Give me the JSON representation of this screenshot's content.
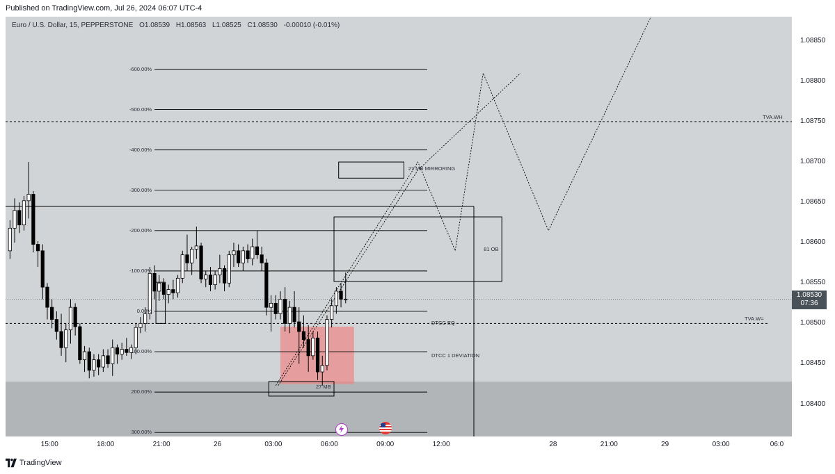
{
  "header": {
    "published": "Published on TradingView.com, Jul 26, 2024 06:07 UTC-4"
  },
  "legend": {
    "symbol": "Euro / U.S. Dollar, 15, PEPPERSTONE",
    "open": "O1.08539",
    "high": "H1.08563",
    "low": "L1.08525",
    "close": "C1.08530",
    "change": "-0.00010 (-0.01%)"
  },
  "current_price": {
    "value": "1.08530",
    "countdown": "07:36"
  },
  "annotations": {
    "mb27_mirroring": "27 MB MIRRORING",
    "ob81": "81 OB",
    "mb27": "27 MB",
    "dtcc_eq": "DTCC EQ",
    "dtcc_dev": "DTCC 1 DEVIATION",
    "tva_wh": "TVA.WH",
    "tva_wl": "TVA.W="
  },
  "footer": {
    "brand": "TradingView"
  },
  "colors": {
    "plot_bg": "#d1d4d6",
    "lower_zone": "#b2b5b8",
    "red_zone": "#f08080",
    "badge": "#4a5259"
  },
  "chart_data": {
    "type": "candlestick",
    "symbol": "EURUSD",
    "timeframe": "15",
    "ylim": [
      1.0836,
      1.0888
    ],
    "y_ticks": [
      "1.08400",
      "1.08450",
      "1.08500",
      "1.08550",
      "1.08600",
      "1.08650",
      "1.08700",
      "1.08750",
      "1.08800",
      "1.08850"
    ],
    "x_ticks": [
      {
        "label": "15:00",
        "bar": 9
      },
      {
        "label": "18:00",
        "bar": 21
      },
      {
        "label": "21:00",
        "bar": 33
      },
      {
        "label": "26",
        "bar": 45
      },
      {
        "label": "03:00",
        "bar": 57
      },
      {
        "label": "06:00",
        "bar": 69
      },
      {
        "label": "09:00",
        "bar": 81
      },
      {
        "label": "12:00",
        "bar": 93
      },
      {
        "label": "28",
        "bar": 117
      },
      {
        "label": "21:00",
        "bar": 129
      },
      {
        "label": "29",
        "bar": 141
      },
      {
        "label": "03:00",
        "bar": 153
      },
      {
        "label": "06:0",
        "bar": 165
      }
    ],
    "candles": [
      [
        1.0859,
        1.08628,
        1.0858,
        1.08618
      ],
      [
        1.08618,
        1.08655,
        1.086,
        1.0864
      ],
      [
        1.0864,
        1.0865,
        1.08612,
        1.08622
      ],
      [
        1.08622,
        1.08658,
        1.08615,
        1.08652
      ],
      [
        1.08652,
        1.087,
        1.0863,
        1.0866
      ],
      [
        1.0866,
        1.08664,
        1.08588,
        1.08598
      ],
      [
        1.08598,
        1.08602,
        1.0857,
        1.0859
      ],
      [
        1.0859,
        1.08598,
        1.0853,
        1.08545
      ],
      [
        1.08545,
        1.0855,
        1.08505,
        1.0852
      ],
      [
        1.0852,
        1.0853,
        1.08494,
        1.08505
      ],
      [
        1.08505,
        1.08515,
        1.0848,
        1.0849
      ],
      [
        1.0849,
        1.08512,
        1.0846,
        1.0847
      ],
      [
        1.0847,
        1.085,
        1.08452,
        1.08492
      ],
      [
        1.08492,
        1.0853,
        1.08475,
        1.0852
      ],
      [
        1.0852,
        1.08525,
        1.08485,
        1.08496
      ],
      [
        1.08496,
        1.085,
        1.0845,
        1.08455
      ],
      [
        1.08455,
        1.08472,
        1.0844,
        1.08465
      ],
      [
        1.08465,
        1.0847,
        1.08432,
        1.08442
      ],
      [
        1.08442,
        1.08462,
        1.08434,
        1.08455
      ],
      [
        1.08455,
        1.08462,
        1.08436,
        1.08446
      ],
      [
        1.08446,
        1.08468,
        1.0844,
        1.0846
      ],
      [
        1.0846,
        1.08468,
        1.08445,
        1.0845
      ],
      [
        1.0845,
        1.0848,
        1.08435,
        1.0847
      ],
      [
        1.0847,
        1.08474,
        1.0845,
        1.08462
      ],
      [
        1.08462,
        1.08476,
        1.08455,
        1.08468
      ],
      [
        1.08468,
        1.08482,
        1.0846,
        1.08464
      ],
      [
        1.08464,
        1.08474,
        1.08456,
        1.0847
      ],
      [
        1.0847,
        1.085,
        1.08462,
        1.08495
      ],
      [
        1.08495,
        1.08508,
        1.08488,
        1.085
      ],
      [
        1.085,
        1.0852,
        1.0849,
        1.08512
      ],
      [
        1.08512,
        1.0857,
        1.08505,
        1.08562
      ],
      [
        1.08562,
        1.08572,
        1.0853,
        1.0854
      ],
      [
        1.0854,
        1.0856,
        1.08528,
        1.0855
      ],
      [
        1.0855,
        1.08556,
        1.0853,
        1.08536
      ],
      [
        1.08536,
        1.08548,
        1.08525,
        1.08542
      ],
      [
        1.08542,
        1.08554,
        1.0853,
        1.08538
      ],
      [
        1.08538,
        1.0856,
        1.08532,
        1.08556
      ],
      [
        1.08556,
        1.0859,
        1.0855,
        1.08585
      ],
      [
        1.08585,
        1.0861,
        1.08565,
        1.08575
      ],
      [
        1.08575,
        1.08595,
        1.0856,
        1.08592
      ],
      [
        1.08592,
        1.0862,
        1.0858,
        1.08596
      ],
      [
        1.08596,
        1.086,
        1.0855,
        1.08555
      ],
      [
        1.08555,
        1.08565,
        1.08545,
        1.0856
      ],
      [
        1.0856,
        1.0857,
        1.0854,
        1.08548
      ],
      [
        1.08548,
        1.08565,
        1.08542,
        1.0856
      ],
      [
        1.0856,
        1.08585,
        1.0855,
        1.08568
      ],
      [
        1.08568,
        1.08572,
        1.0854,
        1.0855
      ],
      [
        1.0855,
        1.0859,
        1.08545,
        1.08585
      ],
      [
        1.08585,
        1.086,
        1.0857,
        1.0859
      ],
      [
        1.0859,
        1.08598,
        1.0857,
        1.08575
      ],
      [
        1.08575,
        1.08595,
        1.08565,
        1.0859
      ],
      [
        1.0859,
        1.08598,
        1.08575,
        1.0858
      ],
      [
        1.0858,
        1.08605,
        1.08572,
        1.08595
      ],
      [
        1.08595,
        1.08615,
        1.0858,
        1.08585
      ],
      [
        1.08585,
        1.08595,
        1.08565,
        1.08575
      ],
      [
        1.08575,
        1.0858,
        1.0851,
        1.0852
      ],
      [
        1.0852,
        1.08535,
        1.0849,
        1.08525
      ],
      [
        1.08525,
        1.08535,
        1.08505,
        1.08512
      ],
      [
        1.08512,
        1.0854,
        1.08505,
        1.0853
      ],
      [
        1.0853,
        1.08545,
        1.0849,
        1.085
      ],
      [
        1.085,
        1.08528,
        1.08488,
        1.0852
      ],
      [
        1.0852,
        1.0854,
        1.08495,
        1.08502
      ],
      [
        1.08502,
        1.0852,
        1.0845,
        1.0849
      ],
      [
        1.0849,
        1.0851,
        1.0847,
        1.0848
      ],
      [
        1.0848,
        1.08498,
        1.0844,
        1.0846
      ],
      [
        1.0846,
        1.0849,
        1.08455,
        1.08482
      ],
      [
        1.08482,
        1.0849,
        1.0843,
        1.0844
      ],
      [
        1.0844,
        1.0846,
        1.08423,
        1.08448
      ],
      [
        1.08448,
        1.0851,
        1.08442,
        1.08505
      ],
      [
        1.08505,
        1.0853,
        1.08495,
        1.08522
      ],
      [
        1.08522,
        1.08545,
        1.08512,
        1.0854
      ],
      [
        1.0854,
        1.0855,
        1.0852,
        1.0853
      ],
      [
        1.0853,
        1.08563,
        1.08525,
        1.0853
      ]
    ],
    "zones": [
      {
        "label": "27 MB MIRRORING",
        "from_bar": 71,
        "to_bar": 85,
        "top": 1.087,
        "bottom": 1.0868
      },
      {
        "label": "81 OB",
        "from_bar": 70,
        "to_bar": 106,
        "top": 1.08632,
        "bottom": 1.08552
      },
      {
        "label": "27 MB",
        "from_bar": 56,
        "to_bar": 70,
        "top": 1.08428,
        "bottom": 1.0841
      }
    ],
    "levels": [
      {
        "label": "TVA.WH",
        "price": 1.0875
      },
      {
        "label": "TVA.W=",
        "price": 1.085
      },
      {
        "label": "DTCC EQ",
        "price": 1.085
      },
      {
        "label": "DTCC 1 DEVIATION",
        "price": 1.0845
      }
    ],
    "fib_levels": [
      {
        "label": "600.00%",
        "price": 1.08815
      },
      {
        "label": "500.00%",
        "price": 1.08765
      },
      {
        "label": "400.00%",
        "price": 1.08715
      },
      {
        "label": "300.00%",
        "price": 1.08665
      },
      {
        "label": "200.00%",
        "price": 1.08615
      },
      {
        "label": "100.00%",
        "price": 1.08565
      },
      {
        "label": "0.00%",
        "price": 1.08515
      },
      {
        "label": "100.00%",
        "price": 1.08465
      },
      {
        "label": "200.00%",
        "price": 1.08415
      },
      {
        "label": "300.00%",
        "price": 1.08365
      },
      {
        "label": "400.00%",
        "price": 1.08315
      }
    ],
    "projections": [
      [
        [
          57.5,
          1.08423
        ],
        [
          88,
          1.087
        ],
        [
          96,
          1.0859
        ],
        [
          102,
          1.0881
        ],
        [
          116,
          1.08615
        ],
        [
          138,
          1.0888
        ]
      ],
      [
        [
          58,
          1.08423
        ],
        [
          88,
          1.0869
        ],
        [
          110,
          1.0881
        ]
      ]
    ]
  }
}
